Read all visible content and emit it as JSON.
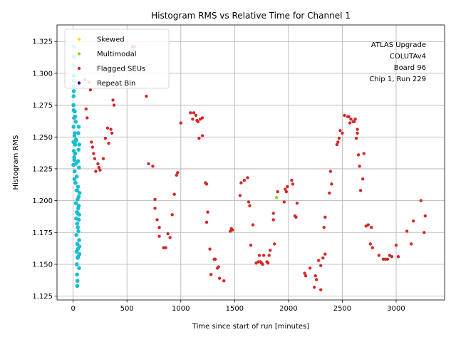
{
  "chart_data": {
    "type": "scatter",
    "title": "Histogram RMS vs Relative Time for Channel 1",
    "xlabel": "Time since start of run [minutes]",
    "ylabel": "Histogram RMS",
    "xlim": [
      -150,
      3450
    ],
    "ylim": [
      1.122,
      1.338
    ],
    "xticks": [
      0,
      500,
      1000,
      1500,
      2000,
      2500,
      3000
    ],
    "yticks": [
      1.125,
      1.15,
      1.175,
      1.2,
      1.225,
      1.25,
      1.275,
      1.3,
      1.325
    ],
    "xtick_labels": [
      "0",
      "500",
      "1000",
      "1500",
      "2000",
      "2500",
      "3000"
    ],
    "ytick_labels": [
      "1.125",
      "1.150",
      "1.175",
      "1.200",
      "1.225",
      "1.250",
      "1.275",
      "1.300",
      "1.325"
    ],
    "grid": true,
    "legend_position": "top-left",
    "annotation_lines": [
      "ATLAS Upgrade",
      "COLUTAv4",
      "Board 96",
      "Chip 1, Run 229"
    ],
    "series": [
      {
        "name": "",
        "color": "#17becf",
        "points": [
          [
            2,
            1.228
          ],
          [
            3,
            1.246
          ],
          [
            4,
            1.258
          ],
          [
            5,
            1.271
          ],
          [
            6,
            1.239
          ],
          [
            8,
            1.265
          ],
          [
            10,
            1.232
          ],
          [
            12,
            1.251
          ],
          [
            14,
            1.223
          ],
          [
            15,
            1.27
          ],
          [
            18,
            1.244
          ],
          [
            20,
            1.237
          ],
          [
            22,
            1.214
          ],
          [
            24,
            1.262
          ],
          [
            25,
            1.198
          ],
          [
            26,
            1.229
          ],
          [
            28,
            1.186
          ],
          [
            29,
            1.247
          ],
          [
            30,
            1.173
          ],
          [
            31,
            1.208
          ],
          [
            32,
            1.16
          ],
          [
            33,
            1.219
          ],
          [
            34,
            1.15
          ],
          [
            35,
            1.191
          ],
          [
            36,
            1.142
          ],
          [
            37,
            1.182
          ],
          [
            38,
            1.133
          ],
          [
            39,
            1.166
          ],
          [
            40,
            1.137
          ],
          [
            41,
            1.201
          ],
          [
            42,
            1.155
          ],
          [
            43,
            1.179
          ],
          [
            44,
            1.162
          ],
          [
            45,
            1.211
          ],
          [
            46,
            1.231
          ],
          [
            47,
            1.194
          ],
          [
            48,
            1.253
          ],
          [
            49,
            1.176
          ],
          [
            50,
            1.24
          ],
          [
            51,
            1.203
          ],
          [
            52,
            1.258
          ],
          [
            53,
            1.185
          ],
          [
            54,
            1.226
          ],
          [
            55,
            1.147
          ],
          [
            56,
            1.169
          ],
          [
            57,
            1.244
          ],
          [
            58,
            1.158
          ],
          [
            60,
            1.206
          ],
          [
            3,
            1.275
          ],
          [
            4,
            1.282
          ],
          [
            5,
            1.29
          ],
          [
            6,
            1.298
          ],
          [
            7,
            1.306
          ],
          [
            8,
            1.313
          ],
          [
            9,
            1.321
          ],
          [
            6,
            1.286
          ],
          [
            7,
            1.294
          ],
          [
            10,
            1.234
          ],
          [
            12,
            1.217
          ],
          [
            16,
            1.253
          ],
          [
            20,
            1.266
          ],
          [
            26,
            1.248
          ],
          [
            38,
            1.208
          ],
          [
            42,
            1.19
          ],
          [
            44,
            1.231
          ],
          [
            47,
            1.156
          ],
          [
            52,
            1.196
          ],
          [
            56,
            1.189
          ],
          [
            58,
            1.164
          ]
        ]
      },
      {
        "name": "Skewed",
        "color": "#ffdd00",
        "points": []
      },
      {
        "name": "Multimodal",
        "color": "#9acd32",
        "points": [
          [
            1890,
            1.2025
          ]
        ]
      },
      {
        "name": "Flagged SEUs",
        "color": "#d62728",
        "points": [
          [
            110,
            1.295
          ],
          [
            120,
            1.272
          ],
          [
            130,
            1.265
          ],
          [
            150,
            1.293
          ],
          [
            160,
            1.287
          ],
          [
            170,
            1.246
          ],
          [
            180,
            1.242
          ],
          [
            190,
            1.237
          ],
          [
            200,
            1.233
          ],
          [
            210,
            1.223
          ],
          [
            230,
            1.229
          ],
          [
            240,
            1.226
          ],
          [
            250,
            1.224
          ],
          [
            280,
            1.233
          ],
          [
            300,
            1.249
          ],
          [
            320,
            1.257
          ],
          [
            330,
            1.245
          ],
          [
            350,
            1.256
          ],
          [
            360,
            1.253
          ],
          [
            370,
            1.279
          ],
          [
            380,
            1.275
          ],
          [
            550,
            1.321
          ],
          [
            570,
            1.321
          ],
          [
            680,
            1.282
          ],
          [
            700,
            1.229
          ],
          [
            740,
            1.227
          ],
          [
            760,
            1.201
          ],
          [
            760,
            1.194
          ],
          [
            780,
            1.185
          ],
          [
            800,
            1.179
          ],
          [
            800,
            1.172
          ],
          [
            840,
            1.163
          ],
          [
            860,
            1.163
          ],
          [
            880,
            1.174
          ],
          [
            900,
            1.171
          ],
          [
            920,
            1.189
          ],
          [
            940,
            1.205
          ],
          [
            960,
            1.22
          ],
          [
            970,
            1.222
          ],
          [
            1000,
            1.261
          ],
          [
            1090,
            1.269
          ],
          [
            1110,
            1.264
          ],
          [
            1120,
            1.269
          ],
          [
            1140,
            1.267
          ],
          [
            1150,
            1.263
          ],
          [
            1160,
            1.262
          ],
          [
            1170,
            1.249
          ],
          [
            1180,
            1.264
          ],
          [
            1200,
            1.265
          ],
          [
            1200,
            1.251
          ],
          [
            1230,
            1.214
          ],
          [
            1240,
            1.213
          ],
          [
            1240,
            1.183
          ],
          [
            1250,
            1.191
          ],
          [
            1270,
            1.162
          ],
          [
            1280,
            1.142
          ],
          [
            1310,
            1.154
          ],
          [
            1320,
            1.154
          ],
          [
            1340,
            1.147
          ],
          [
            1350,
            1.148
          ],
          [
            1360,
            1.139
          ],
          [
            1400,
            1.137
          ],
          [
            1460,
            1.176
          ],
          [
            1470,
            1.178
          ],
          [
            1480,
            1.177
          ],
          [
            1550,
            1.204
          ],
          [
            1560,
            1.214
          ],
          [
            1590,
            1.216
          ],
          [
            1620,
            1.218
          ],
          [
            1630,
            1.199
          ],
          [
            1640,
            1.196
          ],
          [
            1650,
            1.165
          ],
          [
            1670,
            1.181
          ],
          [
            1700,
            1.151
          ],
          [
            1720,
            1.152
          ],
          [
            1730,
            1.157
          ],
          [
            1740,
            1.152
          ],
          [
            1750,
            1.151
          ],
          [
            1760,
            1.15
          ],
          [
            1770,
            1.157
          ],
          [
            1800,
            1.152
          ],
          [
            1810,
            1.151
          ],
          [
            1820,
            1.157
          ],
          [
            1830,
            1.161
          ],
          [
            1860,
            1.19
          ],
          [
            1860,
            1.185
          ],
          [
            1870,
            1.166
          ],
          [
            1900,
            1.207
          ],
          [
            1960,
            1.199
          ],
          [
            1970,
            1.209
          ],
          [
            1980,
            1.207
          ],
          [
            1990,
            1.211
          ],
          [
            2030,
            1.216
          ],
          [
            2040,
            1.213
          ],
          [
            2060,
            1.188
          ],
          [
            2070,
            1.187
          ],
          [
            2080,
            1.198
          ],
          [
            2150,
            1.143
          ],
          [
            2160,
            1.141
          ],
          [
            2200,
            1.147
          ],
          [
            2240,
            1.132
          ],
          [
            2250,
            1.141
          ],
          [
            2260,
            1.138
          ],
          [
            2280,
            1.153
          ],
          [
            2300,
            1.149
          ],
          [
            2300,
            1.13
          ],
          [
            2320,
            1.155
          ],
          [
            2330,
            1.179
          ],
          [
            2340,
            1.158
          ],
          [
            2340,
            1.187
          ],
          [
            2380,
            1.206
          ],
          [
            2390,
            1.223
          ],
          [
            2400,
            1.213
          ],
          [
            2450,
            1.244
          ],
          [
            2460,
            1.246
          ],
          [
            2470,
            1.249
          ],
          [
            2480,
            1.255
          ],
          [
            2500,
            1.253
          ],
          [
            2520,
            1.267
          ],
          [
            2550,
            1.266
          ],
          [
            2560,
            1.266
          ],
          [
            2570,
            1.261
          ],
          [
            2580,
            1.264
          ],
          [
            2600,
            1.262
          ],
          [
            2610,
            1.262
          ],
          [
            2620,
            1.264
          ],
          [
            2630,
            1.249
          ],
          [
            2640,
            1.256
          ],
          [
            2640,
            1.253
          ],
          [
            2650,
            1.236
          ],
          [
            2660,
            1.227
          ],
          [
            2670,
            1.208
          ],
          [
            2690,
            1.217
          ],
          [
            2700,
            1.237
          ],
          [
            2720,
            1.18
          ],
          [
            2740,
            1.181
          ],
          [
            2760,
            1.166
          ],
          [
            2770,
            1.179
          ],
          [
            2780,
            1.163
          ],
          [
            2840,
            1.157
          ],
          [
            2880,
            1.154
          ],
          [
            2900,
            1.154
          ],
          [
            2920,
            1.154
          ],
          [
            2940,
            1.157
          ],
          [
            2960,
            1.156
          ],
          [
            3000,
            1.165
          ],
          [
            3020,
            1.156
          ],
          [
            3100,
            1.176
          ],
          [
            3140,
            1.166
          ],
          [
            3160,
            1.184
          ],
          [
            3230,
            1.2
          ],
          [
            3260,
            1.175
          ],
          [
            3270,
            1.188
          ]
        ]
      },
      {
        "name": "Repeat Bin",
        "color": "#4b0082",
        "points": []
      }
    ]
  }
}
